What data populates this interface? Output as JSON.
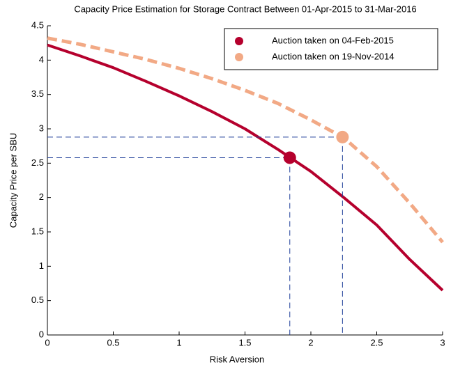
{
  "chart_data": {
    "type": "line",
    "title": "Capacity Price Estimation for Storage Contract Between 01-Apr-2015 to 31-Mar-2016",
    "xlabel": "Risk Aversion",
    "ylabel": "Capacity Price per SBU",
    "xlim": [
      0,
      3
    ],
    "ylim": [
      0,
      4.5
    ],
    "xticks": [
      0,
      0.5,
      1,
      1.5,
      2,
      2.5,
      3
    ],
    "yticks": [
      0,
      0.5,
      1,
      1.5,
      2,
      2.5,
      3,
      3.5,
      4,
      4.5
    ],
    "grid": false,
    "legend": "upper right",
    "series": [
      {
        "name": "Auction taken on 04-Feb-2015",
        "color": "#b5002d",
        "dashed": false,
        "x": [
          0,
          0.25,
          0.5,
          0.75,
          1,
          1.25,
          1.5,
          1.75,
          2,
          2.25,
          2.5,
          2.75,
          3
        ],
        "values": [
          4.22,
          4.06,
          3.89,
          3.69,
          3.48,
          3.25,
          3.0,
          2.7,
          2.38,
          2.0,
          1.6,
          1.1,
          0.65
        ],
        "marker": {
          "x": 1.84,
          "y": 2.58
        }
      },
      {
        "name": "Auction taken on 19-Nov-2014",
        "color": "#f2a985",
        "dashed": true,
        "x": [
          0,
          0.25,
          0.5,
          0.75,
          1,
          1.25,
          1.5,
          1.75,
          2,
          2.25,
          2.5,
          2.75,
          3
        ],
        "values": [
          4.32,
          4.23,
          4.12,
          4.01,
          3.88,
          3.73,
          3.56,
          3.37,
          3.13,
          2.87,
          2.45,
          1.92,
          1.35
        ],
        "marker": {
          "x": 2.24,
          "y": 2.88
        }
      }
    ]
  }
}
